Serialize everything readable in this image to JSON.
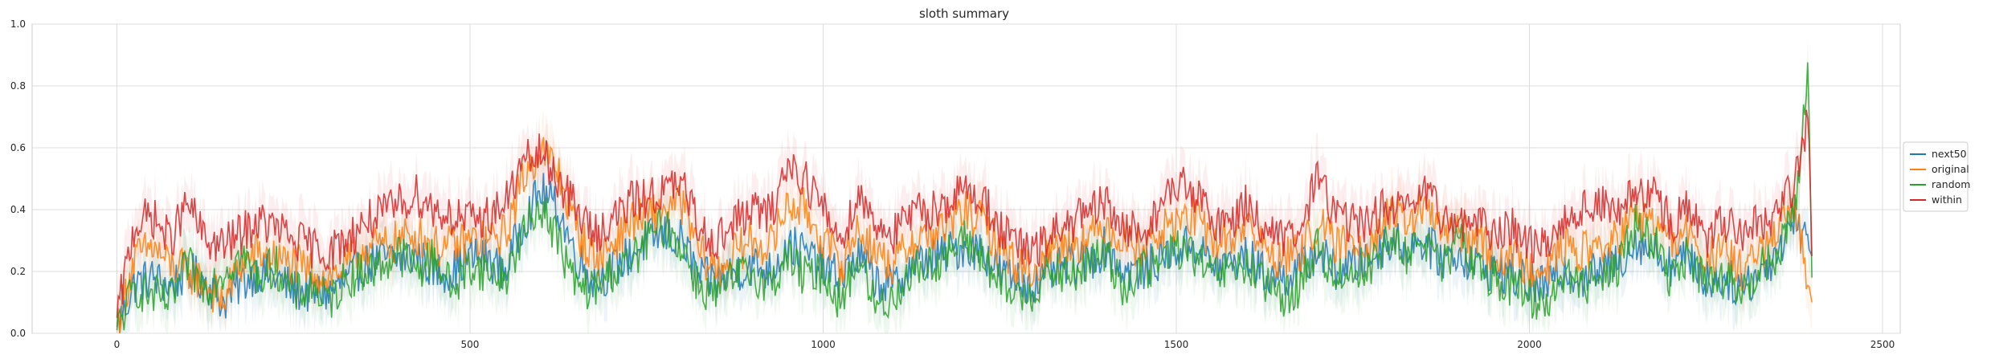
{
  "chart_data": {
    "type": "line",
    "title": "sloth summary",
    "xlabel": "",
    "ylabel": "",
    "xlim": [
      -120,
      2525
    ],
    "ylim": [
      0,
      1
    ],
    "xticks": [
      0,
      500,
      1000,
      1500,
      2000,
      2500
    ],
    "xtick_labels": [
      "0",
      "500",
      "1000",
      "1500",
      "2000",
      "2500"
    ],
    "yticks": [
      0,
      0.2,
      0.4,
      0.6,
      0.8,
      1.0
    ],
    "ytick_labels": [
      "0.0",
      "0.2",
      "0.4",
      "0.6",
      "0.8",
      "1.0"
    ],
    "grid": true,
    "legend_placement": "center-right outside",
    "series": [
      {
        "name": "next50",
        "color": "#1f77b4",
        "x": [
          0,
          25,
          50,
          75,
          100,
          125,
          150,
          175,
          200,
          225,
          250,
          275,
          300,
          325,
          350,
          375,
          400,
          425,
          450,
          475,
          500,
          525,
          550,
          575,
          600,
          625,
          650,
          675,
          700,
          725,
          750,
          775,
          800,
          825,
          850,
          875,
          900,
          925,
          950,
          975,
          1000,
          1025,
          1050,
          1075,
          1100,
          1125,
          1150,
          1175,
          1200,
          1225,
          1250,
          1275,
          1300,
          1325,
          1350,
          1375,
          1400,
          1425,
          1450,
          1475,
          1500,
          1525,
          1550,
          1575,
          1600,
          1625,
          1650,
          1675,
          1700,
          1725,
          1750,
          1775,
          1800,
          1825,
          1850,
          1875,
          1900,
          1925,
          1950,
          1975,
          2000,
          2025,
          2050,
          2075,
          2100,
          2125,
          2150,
          2175,
          2200,
          2225,
          2250,
          2275,
          2300,
          2325,
          2350,
          2375,
          2400
        ],
        "y": [
          0.02,
          0.16,
          0.18,
          0.15,
          0.2,
          0.17,
          0.1,
          0.16,
          0.2,
          0.18,
          0.14,
          0.13,
          0.13,
          0.17,
          0.22,
          0.24,
          0.24,
          0.25,
          0.2,
          0.2,
          0.25,
          0.24,
          0.2,
          0.36,
          0.46,
          0.4,
          0.25,
          0.17,
          0.2,
          0.25,
          0.3,
          0.32,
          0.3,
          0.18,
          0.17,
          0.2,
          0.22,
          0.2,
          0.29,
          0.26,
          0.21,
          0.18,
          0.25,
          0.17,
          0.15,
          0.22,
          0.24,
          0.26,
          0.28,
          0.27,
          0.2,
          0.17,
          0.16,
          0.2,
          0.22,
          0.23,
          0.28,
          0.2,
          0.2,
          0.24,
          0.27,
          0.29,
          0.22,
          0.22,
          0.25,
          0.19,
          0.18,
          0.2,
          0.27,
          0.2,
          0.22,
          0.24,
          0.3,
          0.28,
          0.3,
          0.24,
          0.26,
          0.22,
          0.2,
          0.19,
          0.16,
          0.15,
          0.21,
          0.18,
          0.2,
          0.23,
          0.3,
          0.27,
          0.22,
          0.25,
          0.17,
          0.18,
          0.15,
          0.19,
          0.26,
          0.38,
          0.25
        ]
      },
      {
        "name": "original",
        "color": "#ff7f0e",
        "x": [
          0,
          25,
          50,
          75,
          100,
          125,
          150,
          175,
          200,
          225,
          250,
          275,
          300,
          325,
          350,
          375,
          400,
          425,
          450,
          475,
          500,
          525,
          550,
          575,
          600,
          625,
          650,
          675,
          700,
          725,
          750,
          775,
          800,
          825,
          850,
          875,
          900,
          925,
          950,
          975,
          1000,
          1025,
          1050,
          1075,
          1100,
          1125,
          1150,
          1175,
          1200,
          1225,
          1250,
          1275,
          1300,
          1325,
          1350,
          1375,
          1400,
          1425,
          1450,
          1475,
          1500,
          1525,
          1550,
          1575,
          1600,
          1625,
          1650,
          1675,
          1700,
          1725,
          1750,
          1775,
          1800,
          1825,
          1850,
          1875,
          1900,
          1925,
          1950,
          1975,
          2000,
          2025,
          2050,
          2075,
          2100,
          2125,
          2150,
          2175,
          2200,
          2225,
          2250,
          2275,
          2300,
          2325,
          2350,
          2375,
          2400
        ],
        "y": [
          0.03,
          0.24,
          0.28,
          0.22,
          0.2,
          0.16,
          0.1,
          0.22,
          0.26,
          0.24,
          0.22,
          0.2,
          0.18,
          0.22,
          0.28,
          0.28,
          0.3,
          0.32,
          0.28,
          0.28,
          0.3,
          0.3,
          0.32,
          0.5,
          0.6,
          0.52,
          0.34,
          0.24,
          0.28,
          0.36,
          0.38,
          0.4,
          0.42,
          0.26,
          0.2,
          0.26,
          0.3,
          0.28,
          0.42,
          0.4,
          0.3,
          0.22,
          0.34,
          0.26,
          0.22,
          0.3,
          0.32,
          0.34,
          0.4,
          0.36,
          0.28,
          0.22,
          0.2,
          0.28,
          0.3,
          0.3,
          0.36,
          0.3,
          0.28,
          0.32,
          0.36,
          0.38,
          0.3,
          0.3,
          0.36,
          0.27,
          0.24,
          0.26,
          0.36,
          0.28,
          0.3,
          0.3,
          0.38,
          0.36,
          0.4,
          0.34,
          0.32,
          0.3,
          0.26,
          0.24,
          0.22,
          0.22,
          0.28,
          0.26,
          0.28,
          0.3,
          0.38,
          0.36,
          0.3,
          0.32,
          0.24,
          0.26,
          0.2,
          0.26,
          0.3,
          0.42,
          0.1
        ]
      },
      {
        "name": "random",
        "color": "#2ca02c",
        "x": [
          0,
          25,
          50,
          75,
          100,
          125,
          150,
          175,
          200,
          225,
          250,
          275,
          300,
          325,
          350,
          375,
          400,
          425,
          450,
          475,
          500,
          525,
          550,
          575,
          600,
          625,
          650,
          675,
          700,
          725,
          750,
          775,
          800,
          825,
          850,
          875,
          900,
          925,
          950,
          975,
          1000,
          1025,
          1050,
          1075,
          1100,
          1125,
          1150,
          1175,
          1200,
          1225,
          1250,
          1275,
          1300,
          1325,
          1350,
          1375,
          1400,
          1425,
          1450,
          1475,
          1500,
          1525,
          1550,
          1575,
          1600,
          1625,
          1650,
          1675,
          1700,
          1725,
          1750,
          1775,
          1800,
          1825,
          1850,
          1875,
          1900,
          1925,
          1950,
          1975,
          2000,
          2025,
          2050,
          2075,
          2100,
          2125,
          2150,
          2175,
          2200,
          2225,
          2250,
          2275,
          2300,
          2325,
          2350,
          2375,
          2395,
          2400
        ],
        "y": [
          0.01,
          0.15,
          0.12,
          0.1,
          0.22,
          0.15,
          0.2,
          0.25,
          0.18,
          0.22,
          0.12,
          0.15,
          0.1,
          0.18,
          0.2,
          0.22,
          0.26,
          0.2,
          0.25,
          0.14,
          0.22,
          0.2,
          0.18,
          0.32,
          0.42,
          0.3,
          0.15,
          0.14,
          0.2,
          0.22,
          0.3,
          0.35,
          0.28,
          0.15,
          0.12,
          0.18,
          0.2,
          0.15,
          0.25,
          0.18,
          0.2,
          0.1,
          0.25,
          0.08,
          0.12,
          0.2,
          0.22,
          0.25,
          0.3,
          0.25,
          0.15,
          0.12,
          0.14,
          0.2,
          0.18,
          0.22,
          0.26,
          0.15,
          0.2,
          0.22,
          0.28,
          0.25,
          0.18,
          0.2,
          0.22,
          0.15,
          0.12,
          0.15,
          0.28,
          0.18,
          0.2,
          0.22,
          0.3,
          0.25,
          0.32,
          0.2,
          0.3,
          0.22,
          0.18,
          0.15,
          0.12,
          0.1,
          0.2,
          0.15,
          0.2,
          0.22,
          0.35,
          0.3,
          0.18,
          0.25,
          0.15,
          0.18,
          0.12,
          0.2,
          0.25,
          0.4,
          0.84,
          0.18
        ]
      },
      {
        "name": "within",
        "color": "#d62728",
        "x": [
          0,
          25,
          50,
          75,
          100,
          125,
          150,
          175,
          200,
          225,
          250,
          275,
          300,
          325,
          350,
          375,
          400,
          425,
          450,
          475,
          500,
          525,
          550,
          575,
          600,
          625,
          650,
          675,
          700,
          725,
          750,
          775,
          800,
          825,
          850,
          875,
          900,
          925,
          950,
          975,
          1000,
          1025,
          1050,
          1075,
          1100,
          1125,
          1150,
          1175,
          1200,
          1225,
          1250,
          1275,
          1300,
          1325,
          1350,
          1375,
          1400,
          1425,
          1450,
          1475,
          1500,
          1525,
          1550,
          1575,
          1600,
          1625,
          1650,
          1675,
          1700,
          1725,
          1750,
          1775,
          1800,
          1825,
          1850,
          1875,
          1900,
          1925,
          1950,
          1975,
          2000,
          2025,
          2050,
          2075,
          2100,
          2125,
          2150,
          2175,
          2200,
          2225,
          2250,
          2275,
          2300,
          2325,
          2350,
          2375,
          2395,
          2400
        ],
        "y": [
          0.05,
          0.35,
          0.38,
          0.3,
          0.42,
          0.3,
          0.28,
          0.32,
          0.36,
          0.34,
          0.3,
          0.28,
          0.26,
          0.3,
          0.36,
          0.38,
          0.42,
          0.45,
          0.4,
          0.38,
          0.36,
          0.38,
          0.42,
          0.55,
          0.58,
          0.5,
          0.4,
          0.32,
          0.36,
          0.42,
          0.44,
          0.46,
          0.48,
          0.34,
          0.3,
          0.36,
          0.4,
          0.38,
          0.55,
          0.5,
          0.4,
          0.3,
          0.45,
          0.36,
          0.32,
          0.38,
          0.4,
          0.42,
          0.46,
          0.44,
          0.34,
          0.28,
          0.26,
          0.32,
          0.36,
          0.38,
          0.42,
          0.34,
          0.32,
          0.4,
          0.48,
          0.46,
          0.36,
          0.36,
          0.42,
          0.34,
          0.3,
          0.32,
          0.52,
          0.38,
          0.36,
          0.36,
          0.42,
          0.38,
          0.46,
          0.38,
          0.36,
          0.36,
          0.32,
          0.34,
          0.3,
          0.28,
          0.38,
          0.4,
          0.42,
          0.38,
          0.46,
          0.44,
          0.36,
          0.4,
          0.3,
          0.36,
          0.3,
          0.36,
          0.38,
          0.48,
          0.71,
          0.25
        ]
      }
    ]
  }
}
